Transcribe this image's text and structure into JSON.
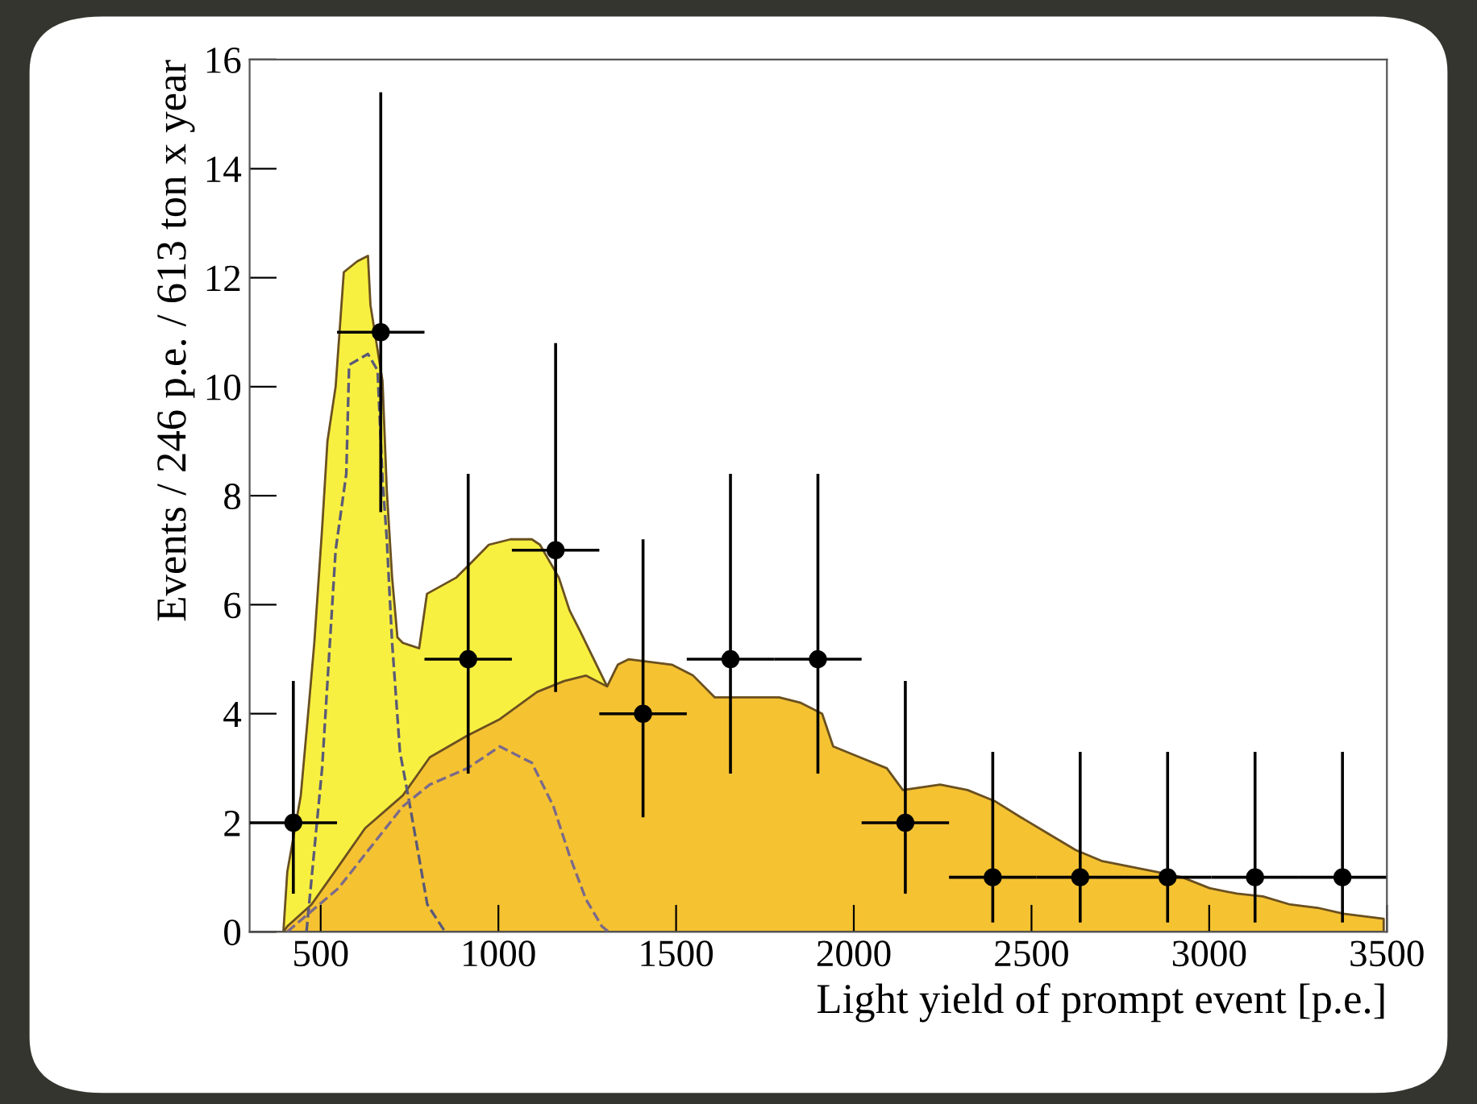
{
  "chart_data": {
    "type": "area",
    "xlabel": "Light yield of prompt event [p.e.]",
    "ylabel": "Events / 246 p.e. / 613 ton x year",
    "xlim": [
      300,
      3500
    ],
    "xticks": [
      500,
      1000,
      1500,
      2000,
      2500,
      3000,
      3500
    ],
    "ylim": [
      0,
      16
    ],
    "yticks": [
      0,
      2,
      4,
      6,
      8,
      10,
      12,
      14,
      16
    ],
    "grid": false,
    "series": [
      {
        "color": "#f8f040",
        "x": [
          300,
          395,
          406,
          444,
          466,
          482,
          504,
          519,
          542,
          565,
          603,
          633,
          640,
          674,
          686,
          701,
          716,
          731,
          777,
          799,
          882,
          928,
          973,
          1034,
          1094,
          1117,
          1170,
          1200,
          1231,
          1276,
          1306
        ],
        "values": [
          0,
          0,
          1.1,
          2.5,
          4.1,
          5.3,
          7.4,
          9.0,
          10.0,
          12.1,
          12.3,
          12.4,
          11.5,
          10.1,
          8.1,
          6.5,
          5.4,
          5.3,
          5.2,
          6.2,
          6.5,
          6.8,
          7.1,
          7.2,
          7.2,
          7.1,
          6.5,
          5.9,
          5.5,
          4.9,
          4.5
        ]
      },
      {
        "color": "#f5c232",
        "x": [
          300,
          395,
          406,
          474,
          550,
          625,
          731,
          807,
          913,
          1004,
          1109,
          1185,
          1246,
          1306,
          1336,
          1367,
          1488,
          1548,
          1609,
          1730,
          1790,
          1851,
          1911,
          1942,
          2017,
          2093,
          2138,
          2243,
          2320,
          2396,
          2470,
          2547,
          2624,
          2697,
          2774,
          2851,
          2924,
          3001,
          3078,
          3151,
          3228,
          3305,
          3378,
          3491
        ],
        "values": [
          0,
          0,
          0.1,
          0.5,
          1.2,
          1.9,
          2.5,
          3.2,
          3.6,
          3.9,
          4.4,
          4.6,
          4.7,
          4.5,
          4.9,
          5.0,
          4.9,
          4.7,
          4.3,
          4.3,
          4.3,
          4.2,
          4.0,
          3.4,
          3.2,
          3.0,
          2.6,
          2.7,
          2.6,
          2.4,
          2.1,
          1.8,
          1.5,
          1.3,
          1.2,
          1.1,
          1.0,
          0.8,
          0.7,
          0.65,
          0.5,
          0.44,
          0.33,
          0.24
        ]
      },
      {
        "type": "line",
        "line_style": "dashed",
        "color": "#5a5a78",
        "x": [
          460,
          504,
          542,
          572,
          580,
          633,
          660,
          674,
          686,
          701,
          723,
          746,
          800,
          850
        ],
        "values": [
          0,
          3,
          7,
          8.4,
          10.4,
          10.6,
          10.3,
          8.3,
          7.2,
          5.3,
          3.3,
          2.5,
          0.5,
          0
        ]
      },
      {
        "type": "line",
        "line_style": "dashed",
        "color": "#7a6a8a",
        "x": [
          406,
          550,
          731,
          807,
          913,
          1004,
          1094,
          1155,
          1200,
          1246,
          1291,
          1310
        ],
        "values": [
          0,
          0.8,
          2.3,
          2.7,
          3.0,
          3.4,
          3.1,
          2.3,
          1.4,
          0.6,
          0.1,
          0
        ]
      },
      {
        "type": "scatter",
        "marker": "circle",
        "color": "#000000",
        "x": [
          423,
          669,
          915,
          1161,
          1407,
          1653,
          1899,
          2145,
          2391,
          2637,
          2883,
          3129,
          3375
        ],
        "values": [
          2,
          11,
          5,
          7,
          4,
          5,
          5,
          2,
          1,
          1,
          1,
          1,
          1
        ],
        "xerrors": [
          123,
          123,
          123,
          123,
          123,
          123,
          123,
          123,
          123,
          123,
          123,
          123,
          123
        ],
        "errors": [
          [
            0.7,
            4.6
          ],
          [
            7.7,
            15.4
          ],
          [
            2.9,
            8.4
          ],
          [
            4.4,
            10.8
          ],
          [
            2.1,
            7.2
          ],
          [
            2.9,
            8.4
          ],
          [
            2.9,
            8.4
          ],
          [
            0.7,
            4.6
          ],
          [
            0.17,
            3.3
          ],
          [
            0.17,
            3.3
          ],
          [
            0.17,
            3.3
          ],
          [
            0.17,
            3.3
          ],
          [
            0.17,
            3.3
          ]
        ]
      }
    ]
  }
}
